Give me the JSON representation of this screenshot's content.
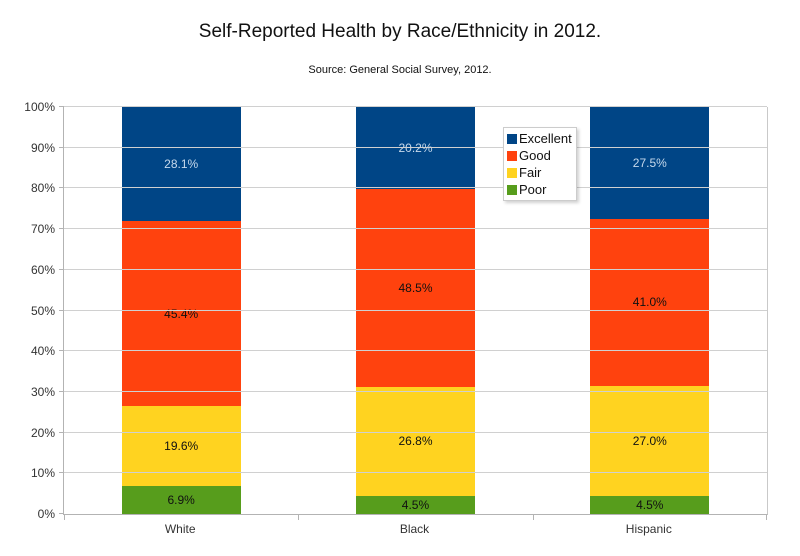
{
  "chart_data": {
    "type": "bar",
    "stacked": true,
    "normalized_to_100": true,
    "title": "Self-Reported Health by Race/Ethnicity in 2012.",
    "subtitle": "Source: General Social Survey, 2012.",
    "categories": [
      "White",
      "Black",
      "Hispanic"
    ],
    "series": [
      {
        "name": "Excellent",
        "color": "#004586",
        "label_color": "#c6d9ec",
        "values": [
          28.1,
          20.2,
          27.5
        ],
        "labels": [
          "28.1%",
          "20.2%",
          "27.5%"
        ]
      },
      {
        "name": "Good",
        "color": "#ff420e",
        "label_color": "#111111",
        "values": [
          45.4,
          48.5,
          41.0
        ],
        "labels": [
          "45.4%",
          "48.5%",
          "41.0%"
        ]
      },
      {
        "name": "Fair",
        "color": "#ffd320",
        "label_color": "#111111",
        "values": [
          19.6,
          26.8,
          27.0
        ],
        "labels": [
          "19.6%",
          "26.8%",
          "27.0%"
        ]
      },
      {
        "name": "Poor",
        "color": "#579d1c",
        "label_color": "#111111",
        "values": [
          6.9,
          4.5,
          4.5
        ],
        "labels": [
          "6.9%",
          "4.5%",
          "4.5%"
        ]
      }
    ],
    "stack_order_bottom_to_top": [
      "Poor",
      "Fair",
      "Good",
      "Excellent"
    ],
    "y_ticks": [
      {
        "value": 0,
        "label": "0%"
      },
      {
        "value": 10,
        "label": "10%"
      },
      {
        "value": 20,
        "label": "20%"
      },
      {
        "value": 30,
        "label": "30%"
      },
      {
        "value": 40,
        "label": "40%"
      },
      {
        "value": 50,
        "label": "50%"
      },
      {
        "value": 60,
        "label": "60%"
      },
      {
        "value": 70,
        "label": "70%"
      },
      {
        "value": 80,
        "label": "80%"
      },
      {
        "value": 90,
        "label": "90%"
      },
      {
        "value": 100,
        "label": "100%"
      }
    ],
    "ylim": [
      0,
      100
    ],
    "grid": "horizontal",
    "legend_position": "inside-top-right",
    "colors": {
      "background": "#ffffff",
      "grid": "#d0d0d0",
      "axis": "#b3b3b3"
    }
  }
}
